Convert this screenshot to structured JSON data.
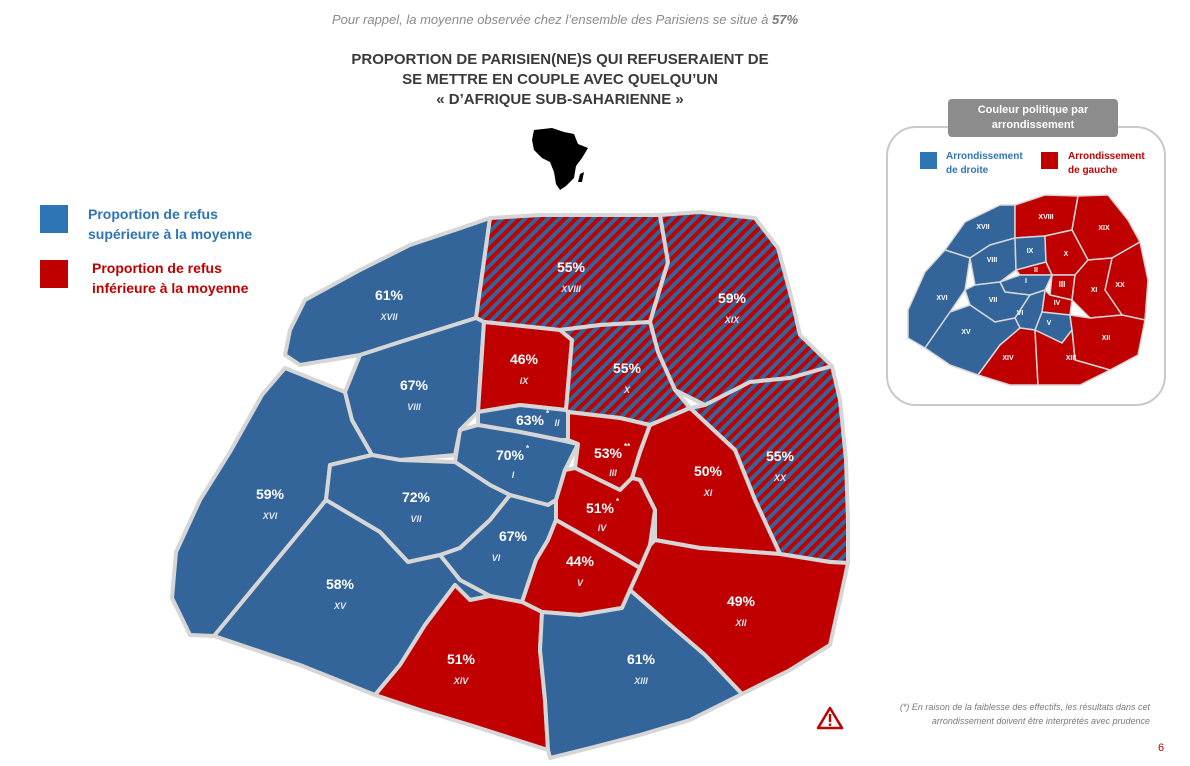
{
  "header": {
    "subtitle_prefix": "Pour rappel, la moyenne observée chez l’ensemble des Parisiens se situe à",
    "subtitle_value": "57%",
    "title_line1": "PROPORTION DE PARISIEN(NE)S QUI REFUSERAIENT DE",
    "title_line2": "SE METTRE EN COUPLE AVEC QUELQU’UN",
    "title_line3": "« D’AFRIQUE SUB-SAHARIENNE »"
  },
  "legend": {
    "above_line1": "Proportion de refus",
    "above_line2": "supérieure à la moyenne",
    "below_line1": "Proportion de refus",
    "below_line2": "inférieure à la moyenne"
  },
  "colors": {
    "blue": "#33659a",
    "red": "#c00000",
    "blue_label": "#2e75b6",
    "red_label": "#c00000",
    "border": "#d6d6d6"
  },
  "arrondissements": [
    {
      "num": "I",
      "value": "70%",
      "star": "*",
      "fill": "blue"
    },
    {
      "num": "II",
      "value": "63%",
      "star": "*",
      "fill": "blue"
    },
    {
      "num": "III",
      "value": "53%",
      "star": "**",
      "fill": "red"
    },
    {
      "num": "IV",
      "value": "51%",
      "star": "*",
      "fill": "red"
    },
    {
      "num": "V",
      "value": "44%",
      "star": "",
      "fill": "red"
    },
    {
      "num": "VI",
      "value": "67%",
      "star": "",
      "fill": "blue"
    },
    {
      "num": "VII",
      "value": "72%",
      "star": "",
      "fill": "blue"
    },
    {
      "num": "VIII",
      "value": "67%",
      "star": "",
      "fill": "blue"
    },
    {
      "num": "IX",
      "value": "46%",
      "star": "",
      "fill": "red"
    },
    {
      "num": "X",
      "value": "55%",
      "star": "",
      "fill": "hatched"
    },
    {
      "num": "XI",
      "value": "50%",
      "star": "",
      "fill": "red"
    },
    {
      "num": "XII",
      "value": "49%",
      "star": "",
      "fill": "red"
    },
    {
      "num": "XIII",
      "value": "61%",
      "star": "",
      "fill": "blue"
    },
    {
      "num": "XIV",
      "value": "51%",
      "star": "",
      "fill": "red"
    },
    {
      "num": "XV",
      "value": "58%",
      "star": "",
      "fill": "blue"
    },
    {
      "num": "XVI",
      "value": "59%",
      "star": "",
      "fill": "blue"
    },
    {
      "num": "XVII",
      "value": "61%",
      "star": "",
      "fill": "blue"
    },
    {
      "num": "XVIII",
      "value": "55%",
      "star": "",
      "fill": "hatched"
    },
    {
      "num": "XIX",
      "value": "59%",
      "star": "",
      "fill": "hatched"
    },
    {
      "num": "XX",
      "value": "55%",
      "star": "",
      "fill": "hatched"
    }
  ],
  "inset": {
    "title_line1": "Couleur politique par",
    "title_line2": "arrondissement",
    "right_line1": "Arrondissement",
    "right_line2": "de droite",
    "left_line1": "Arrondissement",
    "left_line2": "de gauche",
    "districts": [
      {
        "num": "I",
        "fill": "blue"
      },
      {
        "num": "II",
        "fill": "red"
      },
      {
        "num": "III",
        "fill": "red"
      },
      {
        "num": "IV",
        "fill": "red"
      },
      {
        "num": "V",
        "fill": "blue"
      },
      {
        "num": "VI",
        "fill": "blue"
      },
      {
        "num": "VII",
        "fill": "blue"
      },
      {
        "num": "VIII",
        "fill": "blue"
      },
      {
        "num": "IX",
        "fill": "blue"
      },
      {
        "num": "X",
        "fill": "red"
      },
      {
        "num": "XI",
        "fill": "red"
      },
      {
        "num": "XII",
        "fill": "red"
      },
      {
        "num": "XIII",
        "fill": "red"
      },
      {
        "num": "XIV",
        "fill": "red"
      },
      {
        "num": "XV",
        "fill": "blue"
      },
      {
        "num": "XVI",
        "fill": "blue"
      },
      {
        "num": "XVII",
        "fill": "blue"
      },
      {
        "num": "XVIII",
        "fill": "red"
      },
      {
        "num": "XIX",
        "fill": "red"
      },
      {
        "num": "XX",
        "fill": "red"
      }
    ]
  },
  "note": {
    "line1": "(*) En raison de la faiblesse des effectifs, les résultats dans cet",
    "line2": "arrondissement doivent être interprétés avec prudence"
  },
  "page_number": "6",
  "icons": {
    "africa": "africa-silhouette-icon",
    "warning": "warning-triangle-icon"
  }
}
